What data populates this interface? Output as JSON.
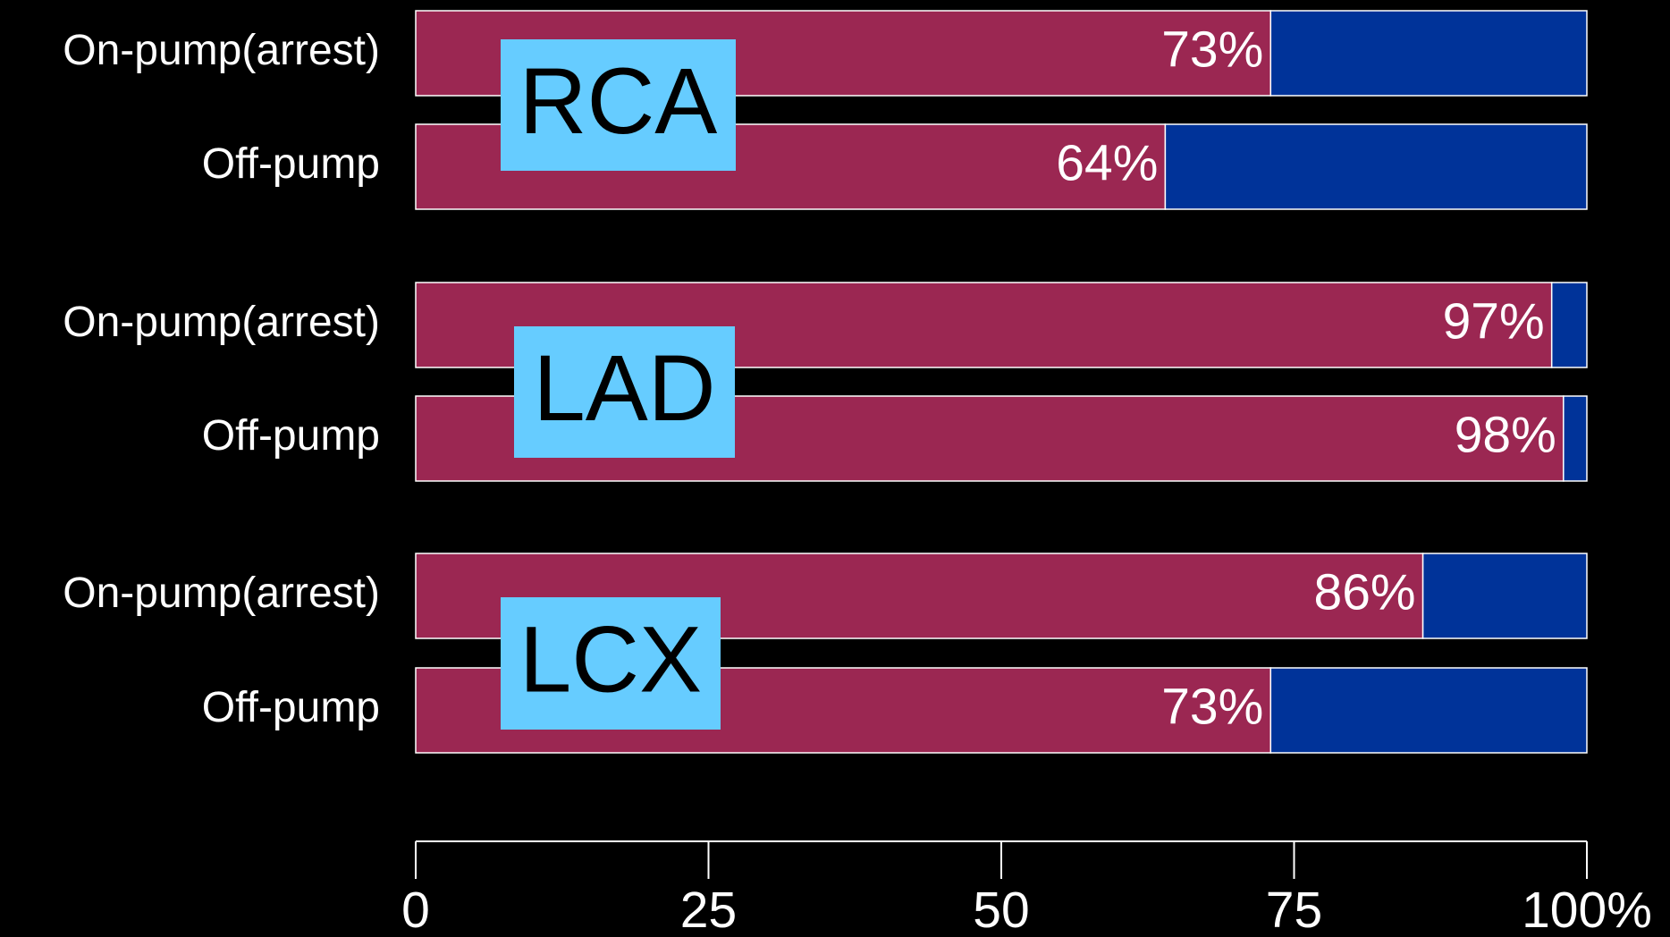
{
  "chart_data": {
    "type": "stacked-bar-horizontal",
    "groups": [
      "RCA",
      "LAD",
      "LCX"
    ],
    "categories": [
      "On-pump(arrest)",
      "Off-pump",
      "On-pump(arrest)",
      "Off-pump",
      "On-pump(arrest)",
      "Off-pump"
    ],
    "series": [
      {
        "color": "#9b2752",
        "values": [
          73,
          64,
          97,
          98,
          86,
          73
        ],
        "value_labels": [
          "73%",
          "64%",
          "97%",
          "98%",
          "86%",
          "73%"
        ]
      },
      {
        "color": "#003399",
        "values": [
          27,
          36,
          3,
          2,
          14,
          27
        ]
      }
    ],
    "xlim": [
      0,
      100
    ],
    "xticks": [
      0,
      25,
      50,
      75,
      {
        "value": 100,
        "label": "100%"
      }
    ],
    "group_box_color": "#66ccff"
  }
}
